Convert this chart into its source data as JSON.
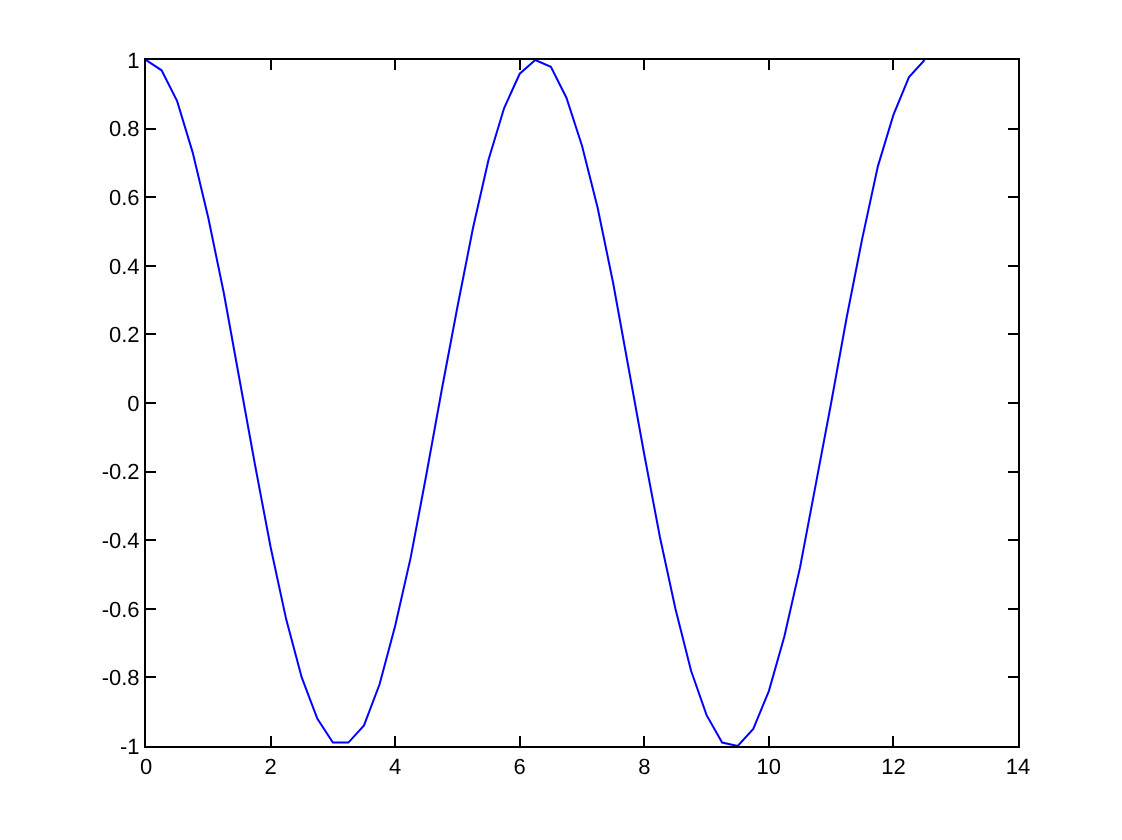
{
  "chart_data": {
    "type": "line",
    "x": [
      0,
      0.25,
      0.5,
      0.75,
      1,
      1.25,
      1.5,
      1.75,
      2,
      2.25,
      2.5,
      2.75,
      3,
      3.25,
      3.5,
      3.75,
      4,
      4.25,
      4.5,
      4.75,
      5,
      5.25,
      5.5,
      5.75,
      6,
      6.25,
      6.5,
      6.75,
      7,
      7.25,
      7.5,
      7.75,
      8,
      8.25,
      8.5,
      8.75,
      9,
      9.25,
      9.5,
      9.75,
      10,
      10.25,
      10.5,
      10.75,
      11,
      11.25,
      11.5,
      11.75,
      12,
      12.25,
      12.5
    ],
    "values": [
      1,
      0.97,
      0.88,
      0.73,
      0.54,
      0.32,
      0.07,
      -0.18,
      -0.42,
      -0.63,
      -0.8,
      -0.92,
      -0.99,
      -0.99,
      -0.94,
      -0.82,
      -0.65,
      -0.45,
      -0.21,
      0.04,
      0.28,
      0.51,
      0.71,
      0.86,
      0.96,
      1,
      0.98,
      0.89,
      0.75,
      0.57,
      0.35,
      0.1,
      -0.15,
      -0.39,
      -0.6,
      -0.78,
      -0.91,
      -0.99,
      -1,
      -0.95,
      -0.84,
      -0.68,
      -0.48,
      -0.24,
      0,
      0.25,
      0.48,
      0.69,
      0.84,
      0.95,
      1
    ],
    "color": "#0000ff",
    "xlim": [
      0,
      14
    ],
    "xticks": [
      0,
      2,
      4,
      6,
      8,
      10,
      12,
      14
    ],
    "ylim": [
      -1,
      1
    ],
    "yticks": [
      -1,
      -0.8,
      -0.6,
      -0.4,
      -0.2,
      0,
      0.2,
      0.4,
      0.6,
      0.8,
      1
    ],
    "grid": false,
    "marker": "none",
    "line_style": "solid"
  }
}
